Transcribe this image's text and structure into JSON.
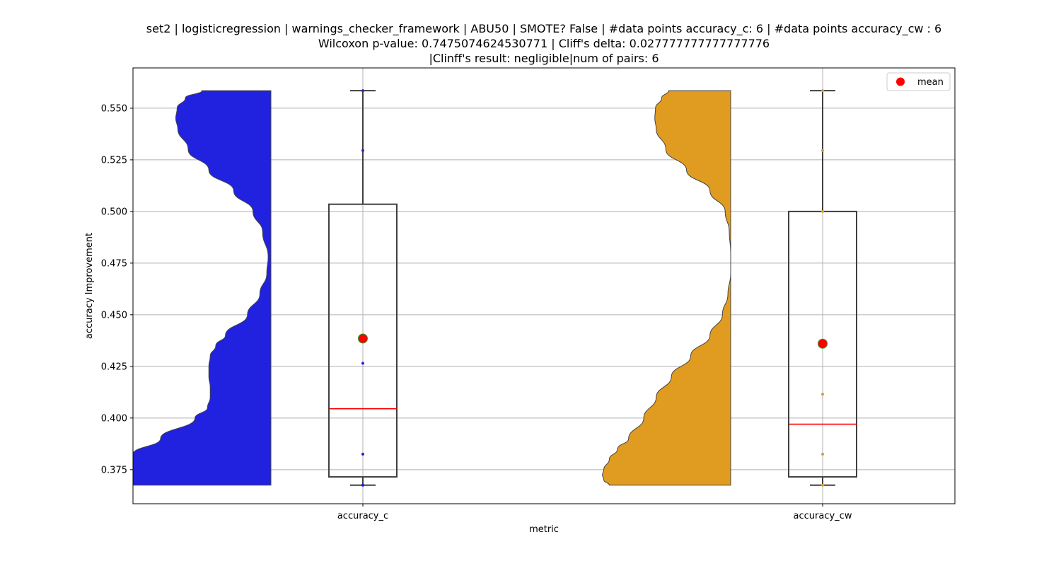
{
  "chart_data": {
    "type": "violin-box",
    "title_lines": [
      "set2 | logisticregression | warnings_checker_framework | ABU50 | SMOTE? False | #data points accuracy_c: 6 | #data points accuracy_cw : 6",
      "Wilcoxon p-value: 0.7475074624530771 | Cliff's delta: 0.027777777777777776",
      "|Clinff's result: negligible|num of pairs: 6"
    ],
    "xlabel": "metric",
    "ylabel": "accuracy Improvement",
    "ylim": [
      0.3585,
      0.5695
    ],
    "yticks": [
      0.375,
      0.4,
      0.425,
      0.45,
      0.475,
      0.5,
      0.525,
      0.55
    ],
    "ytick_labels": [
      "0.375",
      "0.400",
      "0.425",
      "0.450",
      "0.475",
      "0.500",
      "0.525",
      "0.550"
    ],
    "categories": [
      "accuracy_c",
      "accuracy_cw"
    ],
    "grid": true,
    "legend": {
      "position": "top-right",
      "label": "mean"
    },
    "mean_color": "#ff0000",
    "mean_edge_color": "#2ca02c",
    "median_color": "#ff0000",
    "series": [
      {
        "category": "accuracy_c",
        "color": "#2121e0",
        "points": [
          0.3675,
          0.3825,
          0.4265,
          0.5295,
          0.5585,
          0.3675
        ],
        "box": {
          "whisker_low": 0.3675,
          "q1": 0.3715,
          "median": 0.4045,
          "q3": 0.5035,
          "whisker_high": 0.5585
        },
        "mean": 0.4385,
        "density": [
          [
            0.3675,
            1.0
          ],
          [
            0.3775,
            1.0
          ],
          [
            0.3825,
            1.0
          ],
          [
            0.39,
            0.8
          ],
          [
            0.4,
            0.55
          ],
          [
            0.405,
            0.46
          ],
          [
            0.41,
            0.44
          ],
          [
            0.415,
            0.44
          ],
          [
            0.42,
            0.45
          ],
          [
            0.425,
            0.45
          ],
          [
            0.43,
            0.44
          ],
          [
            0.435,
            0.4
          ],
          [
            0.44,
            0.33
          ],
          [
            0.45,
            0.17
          ],
          [
            0.46,
            0.08
          ],
          [
            0.47,
            0.03
          ],
          [
            0.478,
            0.02
          ],
          [
            0.49,
            0.06
          ],
          [
            0.5,
            0.13
          ],
          [
            0.51,
            0.27
          ],
          [
            0.52,
            0.45
          ],
          [
            0.53,
            0.6
          ],
          [
            0.54,
            0.675
          ],
          [
            0.545,
            0.69
          ],
          [
            0.55,
            0.68
          ],
          [
            0.555,
            0.62
          ],
          [
            0.5585,
            0.5
          ]
        ]
      },
      {
        "category": "accuracy_cw",
        "color": "#e09c21",
        "points": [
          0.3675,
          0.3825,
          0.4115,
          0.5,
          0.5295,
          0.5585
        ],
        "box": {
          "whisker_low": 0.3675,
          "q1": 0.3715,
          "median": 0.397,
          "q3": 0.5,
          "whisker_high": 0.5585
        },
        "mean": 0.436,
        "density": [
          [
            0.3675,
            0.88
          ],
          [
            0.37,
            0.92
          ],
          [
            0.3725,
            0.93
          ],
          [
            0.375,
            0.92
          ],
          [
            0.38,
            0.88
          ],
          [
            0.385,
            0.82
          ],
          [
            0.39,
            0.74
          ],
          [
            0.4,
            0.63
          ],
          [
            0.41,
            0.54
          ],
          [
            0.42,
            0.43
          ],
          [
            0.43,
            0.29
          ],
          [
            0.44,
            0.15
          ],
          [
            0.45,
            0.06
          ],
          [
            0.46,
            0.02
          ],
          [
            0.47,
            0.0
          ],
          [
            0.48,
            0.0
          ],
          [
            0.49,
            0.01
          ],
          [
            0.5,
            0.04
          ],
          [
            0.51,
            0.15
          ],
          [
            0.52,
            0.32
          ],
          [
            0.53,
            0.47
          ],
          [
            0.54,
            0.54
          ],
          [
            0.545,
            0.55
          ],
          [
            0.55,
            0.545
          ],
          [
            0.555,
            0.5
          ],
          [
            0.5585,
            0.45
          ]
        ]
      }
    ]
  }
}
